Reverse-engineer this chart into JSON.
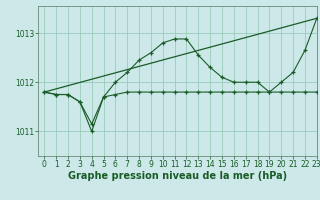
{
  "title": "Graphe pression niveau de la mer (hPa)",
  "bg_color": "#cce8e8",
  "plot_bg_color": "#cce8e8",
  "grid_color": "#99ccbb",
  "line_color": "#1a5c28",
  "xlim": [
    -0.5,
    23
  ],
  "ylim": [
    1010.5,
    1013.55
  ],
  "yticks": [
    1011,
    1012,
    1013
  ],
  "xticks": [
    0,
    1,
    2,
    3,
    4,
    5,
    6,
    7,
    8,
    9,
    10,
    11,
    12,
    13,
    14,
    15,
    16,
    17,
    18,
    19,
    20,
    21,
    22,
    23
  ],
  "series_flat_x": [
    0,
    1,
    2,
    3,
    4,
    5,
    6,
    7,
    8,
    9,
    10,
    11,
    12,
    13,
    14,
    15,
    16,
    17,
    18,
    19,
    20,
    21,
    22,
    23
  ],
  "series_flat_y": [
    1011.8,
    1011.75,
    1011.75,
    1011.6,
    1011.0,
    1011.7,
    1011.75,
    1011.8,
    1011.8,
    1011.8,
    1011.8,
    1011.8,
    1011.8,
    1011.8,
    1011.8,
    1011.8,
    1011.8,
    1011.8,
    1011.8,
    1011.8,
    1011.8,
    1011.8,
    1011.8,
    1011.8
  ],
  "series_curve_x": [
    0,
    1,
    2,
    3,
    4,
    5,
    6,
    7,
    8,
    9,
    10,
    11,
    12,
    13,
    14,
    15,
    16,
    17,
    18,
    19,
    20,
    21,
    22,
    23
  ],
  "series_curve_y": [
    1011.8,
    1011.75,
    1011.75,
    1011.6,
    1011.15,
    1011.7,
    1012.0,
    1012.2,
    1012.45,
    1012.6,
    1012.8,
    1012.88,
    1012.88,
    1012.55,
    1012.3,
    1012.1,
    1012.0,
    1012.0,
    1012.0,
    1011.8,
    1012.0,
    1012.2,
    1012.65,
    1013.3
  ],
  "series_trend_x": [
    0,
    23
  ],
  "series_trend_y": [
    1011.8,
    1013.3
  ],
  "tick_fontsize": 5.5,
  "title_fontsize": 7.0
}
